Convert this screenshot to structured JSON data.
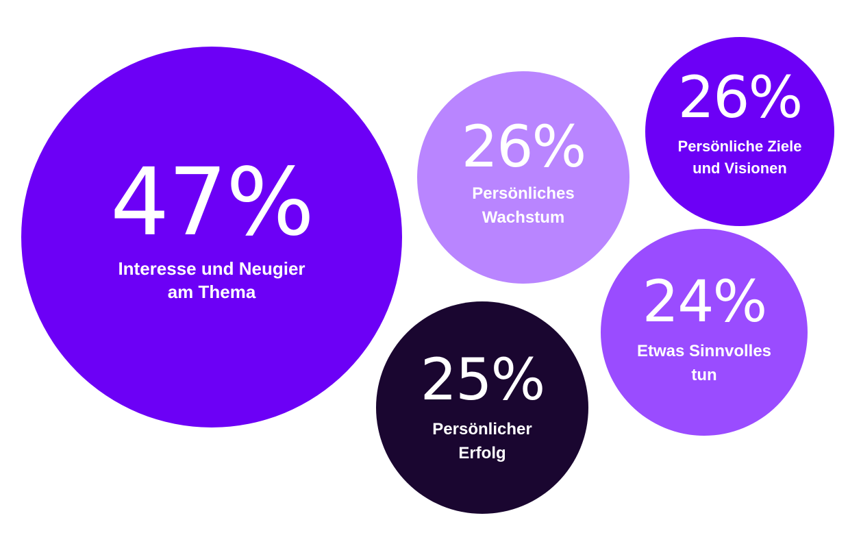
{
  "chart_data": {
    "type": "bubble",
    "title": "",
    "items": [
      {
        "value": 47,
        "display": "47%",
        "label": "Interesse und Neugier\nam Thema",
        "color": "#6c00f6"
      },
      {
        "value": 26,
        "display": "26%",
        "label": "Persönliches\nWachstum",
        "color": "#b985ff"
      },
      {
        "value": 26,
        "display": "26%",
        "label": "Persönliche Ziele\nund Visionen",
        "color": "#6c00f6"
      },
      {
        "value": 25,
        "display": "25%",
        "label": "Persönlicher\nErfolg",
        "color": "#1a0630"
      },
      {
        "value": 24,
        "display": "24%",
        "label": "Etwas Sinnvolles\ntun",
        "color": "#9a4cff"
      }
    ]
  }
}
